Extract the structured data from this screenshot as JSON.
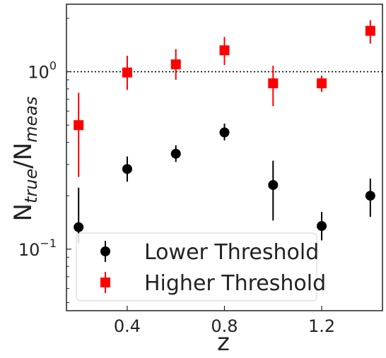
{
  "chart_data": {
    "type": "scatter",
    "xlabel": "z",
    "ylabel_main": "N",
    "ylabel_sub1": "true",
    "ylabel_mid": "/N",
    "ylabel_sub2": "meas",
    "y_scale": "log",
    "xlim": [
      0.15,
      1.45
    ],
    "ylim": [
      0.045,
      2.4
    ],
    "reference_line_y": 1.0,
    "grid": false,
    "legend_position": "lower-left",
    "x_ticks": [
      {
        "value": 0.4,
        "label": "0.4"
      },
      {
        "value": 0.8,
        "label": "0.8"
      },
      {
        "value": 1.2,
        "label": "1.2"
      }
    ],
    "y_ticks": [
      {
        "value": 0.1,
        "base": "10",
        "exp": "−1"
      },
      {
        "value": 1.0,
        "base": "10",
        "exp": "0"
      }
    ],
    "series": [
      {
        "name": "Lower Threshold",
        "marker": "circle",
        "color": "#000000",
        "points": [
          {
            "x": 0.2,
            "y": 0.133,
            "lo": 0.108,
            "hi": 0.222
          },
          {
            "x": 0.4,
            "y": 0.283,
            "lo": 0.24,
            "hi": 0.333
          },
          {
            "x": 0.6,
            "y": 0.345,
            "lo": 0.31,
            "hi": 0.385
          },
          {
            "x": 0.8,
            "y": 0.455,
            "lo": 0.41,
            "hi": 0.51
          },
          {
            "x": 1.0,
            "y": 0.23,
            "lo": 0.145,
            "hi": 0.315
          },
          {
            "x": 1.2,
            "y": 0.135,
            "lo": 0.112,
            "hi": 0.162
          },
          {
            "x": 1.4,
            "y": 0.2,
            "lo": 0.152,
            "hi": 0.25
          }
        ]
      },
      {
        "name": "Higher Threshold",
        "marker": "square",
        "color": "#ff0000",
        "points": [
          {
            "x": 0.2,
            "y": 0.5,
            "lo": 0.255,
            "hi": 0.76
          },
          {
            "x": 0.4,
            "y": 0.99,
            "lo": 0.79,
            "hi": 1.23
          },
          {
            "x": 0.6,
            "y": 1.1,
            "lo": 0.9,
            "hi": 1.34
          },
          {
            "x": 0.8,
            "y": 1.32,
            "lo": 1.09,
            "hi": 1.57
          },
          {
            "x": 1.0,
            "y": 0.86,
            "lo": 0.64,
            "hi": 1.08
          },
          {
            "x": 1.2,
            "y": 0.86,
            "lo": 0.77,
            "hi": 0.95
          },
          {
            "x": 1.4,
            "y": 1.7,
            "lo": 1.44,
            "hi": 1.95
          }
        ]
      }
    ]
  }
}
